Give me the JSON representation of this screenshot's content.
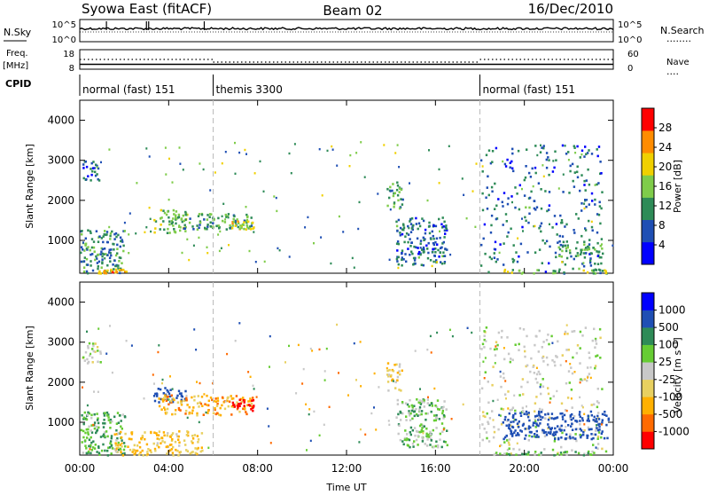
{
  "header": {
    "title": "Syowa East (fitACF)",
    "beam": "Beam 02",
    "date": "16/Dec/2010"
  },
  "top_panel": {
    "left_label": "N.Sky",
    "left_ticks": [
      "10^5",
      "10^0"
    ],
    "right_ticks": [
      "10^5",
      "10^0"
    ],
    "right_label": "N.Search",
    "right_line": "........"
  },
  "freq_panel": {
    "left_label_line1": "Freq.",
    "left_label_line2": "[MHz]",
    "left_ticks": [
      "18",
      "8"
    ],
    "right_ticks": [
      "60",
      "0"
    ],
    "right_label": "Nave",
    "right_line": "...."
  },
  "cpid": {
    "label": "CPID",
    "segments": [
      {
        "label": "normal (fast) 151",
        "start_hour": 0
      },
      {
        "label": "themis 3300",
        "start_hour": 6
      },
      {
        "label": "normal (fast) 151",
        "start_hour": 18
      }
    ]
  },
  "xaxis": {
    "label": "Time UT",
    "ticks": [
      "00:00",
      "04:00",
      "08:00",
      "12:00",
      "16:00",
      "20:00",
      "00:00"
    ],
    "range_hours": [
      0,
      24
    ]
  },
  "power_panel": {
    "ylabel": "Slant Range [km]",
    "yticks": [
      "4000",
      "3000",
      "2000",
      "1000"
    ],
    "colorbar_label": "Power [dB]",
    "colorbar_ticks": [
      "28",
      "24",
      "20",
      "16",
      "12",
      "8",
      "4"
    ],
    "colors": [
      "#0000ff",
      "#1f4fb4",
      "#2e8b57",
      "#7fcc4a",
      "#f0d000",
      "#ff8c00",
      "#ff0000"
    ]
  },
  "velocity_panel": {
    "ylabel": "Slant Range [km]",
    "yticks": [
      "4000",
      "3000",
      "2000",
      "1000"
    ],
    "colorbar_label": "Velocity [m s⁻¹]",
    "colorbar_ticks": [
      "1000",
      "500",
      "100",
      "25",
      "-25",
      "-100",
      "-500",
      "-1000"
    ],
    "colors": [
      "#ff0000",
      "#ff6a00",
      "#ffb000",
      "#e8d060",
      "#c8c8c8",
      "#66cc33",
      "#2e8b57",
      "#1f4fb4",
      "#0000ff"
    ]
  },
  "chart_data": [
    {
      "type": "heatmap",
      "title": "Power [dB]",
      "xlabel": "Time UT",
      "ylabel": "Slant Range [km]",
      "xlim": [
        0,
        24
      ],
      "ylim": [
        180,
        4500
      ],
      "clim": [
        0,
        30
      ],
      "regions": [
        {
          "t": [
            0.1,
            0.9
          ],
          "r": [
            2500,
            3000
          ],
          "value": 8
        },
        {
          "t": [
            0.0,
            2.0
          ],
          "r": [
            200,
            1300
          ],
          "value": 10
        },
        {
          "t": [
            0.8,
            2.2
          ],
          "r": [
            200,
            300
          ],
          "value": 22
        },
        {
          "t": [
            3.3,
            4.8
          ],
          "r": [
            1200,
            1800
          ],
          "value": 14
        },
        {
          "t": [
            4.5,
            7.8
          ],
          "r": [
            1300,
            1700
          ],
          "value": 12
        },
        {
          "t": [
            6.8,
            7.8
          ],
          "r": [
            1300,
            1500
          ],
          "value": 18
        },
        {
          "t": [
            13.8,
            14.5
          ],
          "r": [
            1800,
            2500
          ],
          "value": 12
        },
        {
          "t": [
            14.2,
            16.5
          ],
          "r": [
            400,
            1600
          ],
          "value": 8
        },
        {
          "t": [
            18.0,
            23.5
          ],
          "r": [
            200,
            3400
          ],
          "value": 8
        },
        {
          "t": [
            18.5,
            23.8
          ],
          "r": [
            200,
            300
          ],
          "value": 14
        },
        {
          "t": [
            21.5,
            23.5
          ],
          "r": [
            600,
            1000
          ],
          "value": 12
        }
      ]
    },
    {
      "type": "heatmap",
      "title": "Velocity [m s⁻¹]",
      "xlabel": "Time UT",
      "ylabel": "Slant Range [km]",
      "xlim": [
        0,
        24
      ],
      "ylim": [
        180,
        4500
      ],
      "clim": [
        -1000,
        1000
      ],
      "regions": [
        {
          "t": [
            0.1,
            0.9
          ],
          "r": [
            2500,
            3000
          ],
          "value": 0
        },
        {
          "t": [
            0.0,
            2.0
          ],
          "r": [
            200,
            1300
          ],
          "value": 60
        },
        {
          "t": [
            1.5,
            5.5
          ],
          "r": [
            200,
            800
          ],
          "value": -60
        },
        {
          "t": [
            3.3,
            4.8
          ],
          "r": [
            1500,
            1900
          ],
          "value": 150
        },
        {
          "t": [
            3.5,
            7.8
          ],
          "r": [
            1200,
            1700
          ],
          "value": -80
        },
        {
          "t": [
            6.8,
            7.8
          ],
          "r": [
            1300,
            1600
          ],
          "value": -700
        },
        {
          "t": [
            13.8,
            14.5
          ],
          "r": [
            1800,
            2500
          ],
          "value": -50
        },
        {
          "t": [
            14.2,
            16.5
          ],
          "r": [
            400,
            1600
          ],
          "value": 40
        },
        {
          "t": [
            18.0,
            23.5
          ],
          "r": [
            200,
            3400
          ],
          "value": 0
        },
        {
          "t": [
            19.0,
            23.8
          ],
          "r": [
            600,
            1300
          ],
          "value": 300
        },
        {
          "t": [
            18.5,
            23.8
          ],
          "r": [
            200,
            300
          ],
          "value": 60
        }
      ]
    }
  ]
}
